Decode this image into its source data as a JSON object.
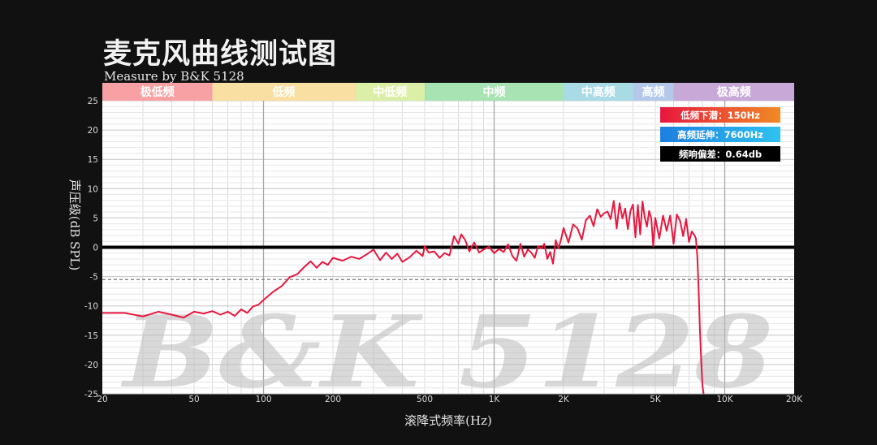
{
  "header": {
    "title": "麦克风曲线测试图",
    "subtitle": "Measure by B&K 5128"
  },
  "watermark": "B&K 5128",
  "colors": {
    "background": "#111112",
    "plot_bg": "#ffffff",
    "curve": "#e8173f",
    "zero_line": "#000000",
    "ref_line": "#8a8a8a"
  },
  "bands": [
    {
      "label": "极低频",
      "from": 20,
      "to": 60,
      "color": "#f7a1a4"
    },
    {
      "label": "低频",
      "from": 60,
      "to": 250,
      "color": "#f9dfa1"
    },
    {
      "label": "中低频",
      "from": 250,
      "to": 500,
      "color": "#dcefa6"
    },
    {
      "label": "中频",
      "from": 500,
      "to": 2000,
      "color": "#a8e3b3"
    },
    {
      "label": "中高频",
      "from": 2000,
      "to": 4000,
      "color": "#a9dbe5"
    },
    {
      "label": "高频",
      "from": 4000,
      "to": 6000,
      "color": "#b4c9ea"
    },
    {
      "label": "极高频",
      "from": 6000,
      "to": 20000,
      "color": "#c8a8d6"
    }
  ],
  "badges": [
    {
      "text": "低频下潜：150Hz",
      "color_from": "#e8173f",
      "color_to": "#f08a24"
    },
    {
      "text": "高频延伸：7600Hz",
      "color_from": "#1d7fe0",
      "color_to": "#2fc2f0"
    },
    {
      "text": "频响偏差：0.64db",
      "color_from": "#000000",
      "color_to": "#000000"
    }
  ],
  "chart_data": {
    "type": "line",
    "title": "麦克风曲线测试图",
    "subtitle": "Measure by B&K 5128",
    "xlabel": "滚降式频率(Hz)",
    "ylabel": "声压级(dB SPL)",
    "x_scale": "log",
    "xlim": [
      20,
      20000
    ],
    "ylim": [
      -25,
      25
    ],
    "x_ticks": [
      {
        "value": 20,
        "label": "20"
      },
      {
        "value": 50,
        "label": "50"
      },
      {
        "value": 100,
        "label": "100"
      },
      {
        "value": 200,
        "label": "200"
      },
      {
        "value": 500,
        "label": "500"
      },
      {
        "value": 1000,
        "label": "1K"
      },
      {
        "value": 2000,
        "label": "2K"
      },
      {
        "value": 5000,
        "label": "5K"
      },
      {
        "value": 10000,
        "label": "10K"
      },
      {
        "value": 20000,
        "label": "20K"
      }
    ],
    "y_ticks": [
      25,
      20,
      15,
      10,
      5,
      0,
      -5,
      -10,
      -15,
      -20,
      -25
    ],
    "grid": true,
    "reference_lines": [
      {
        "y": 0,
        "style": "solid-thick"
      },
      {
        "y": -5.5,
        "style": "dashed"
      }
    ],
    "series": [
      {
        "x": [
          20,
          25,
          30,
          35,
          40,
          45,
          50,
          55,
          60,
          65,
          70,
          75,
          80,
          85,
          90,
          95,
          100,
          110,
          120,
          130,
          140,
          150,
          160,
          170,
          180,
          190,
          200,
          220,
          240,
          260,
          280,
          300,
          320,
          340,
          360,
          380,
          400,
          430,
          460,
          490,
          500,
          520,
          550,
          580,
          610,
          640,
          670,
          700,
          720,
          750,
          780,
          820,
          860,
          900,
          950,
          1000,
          1050,
          1100,
          1150,
          1200,
          1250,
          1300,
          1350,
          1400,
          1450,
          1500,
          1550,
          1600,
          1650,
          1700,
          1750,
          1800,
          1850,
          1900,
          1950,
          2000,
          2100,
          2200,
          2300,
          2400,
          2500,
          2600,
          2700,
          2800,
          2900,
          3000,
          3100,
          3200,
          3300,
          3400,
          3500,
          3600,
          3700,
          3800,
          3900,
          4000,
          4100,
          4200,
          4300,
          4400,
          4500,
          4600,
          4700,
          4800,
          4900,
          5000,
          5200,
          5400,
          5600,
          5800,
          6000,
          6200,
          6400,
          6600,
          6800,
          7000,
          7200,
          7400,
          7500,
          7600,
          7700,
          7800,
          7900,
          8000,
          8100,
          8300,
          8500
        ],
        "y": [
          -11.2,
          -11.2,
          -11.8,
          -11.0,
          -11.5,
          -12.0,
          -11.0,
          -11.3,
          -10.9,
          -11.5,
          -11.0,
          -11.7,
          -10.6,
          -11.2,
          -10.1,
          -9.8,
          -9.0,
          -7.6,
          -6.6,
          -5.1,
          -4.6,
          -3.4,
          -2.4,
          -3.5,
          -2.5,
          -3.0,
          -1.8,
          -2.3,
          -1.6,
          -2.0,
          -1.2,
          -0.4,
          -2.2,
          -0.9,
          -2.0,
          -1.1,
          -2.5,
          -1.7,
          -0.6,
          -1.5,
          0.2,
          -0.9,
          -0.7,
          -1.8,
          -1.0,
          -1.4,
          1.9,
          0.6,
          2.2,
          1.2,
          -0.7,
          0.8,
          -0.9,
          -0.4,
          0.1,
          -1.0,
          -0.3,
          -0.8,
          0.5,
          -1.5,
          -2.3,
          0.6,
          -1.6,
          -0.4,
          -0.9,
          -1.8,
          0.2,
          -0.2,
          0.6,
          -2.0,
          -0.8,
          -2.8,
          1.2,
          -0.2,
          1.3,
          3.3,
          0.8,
          3.9,
          3.2,
          1.3,
          4.6,
          5.4,
          3.6,
          6.5,
          5.2,
          5.8,
          6.1,
          4.8,
          7.9,
          3.2,
          7.5,
          4.9,
          6.6,
          3.1,
          6.2,
          7.3,
          1.7,
          7.2,
          2.2,
          7.8,
          5.1,
          3.5,
          6.2,
          4.9,
          0.2,
          5.0,
          1.5,
          5.4,
          2.8,
          5.4,
          0.6,
          5.6,
          4.5,
          1.9,
          4.8,
          0.9,
          2.7,
          2.0,
          1.5,
          -1.5,
          -7.0,
          -14.0,
          -19.0,
          -23.5,
          -25.0,
          -26.0,
          -27.0
        ]
      }
    ]
  }
}
